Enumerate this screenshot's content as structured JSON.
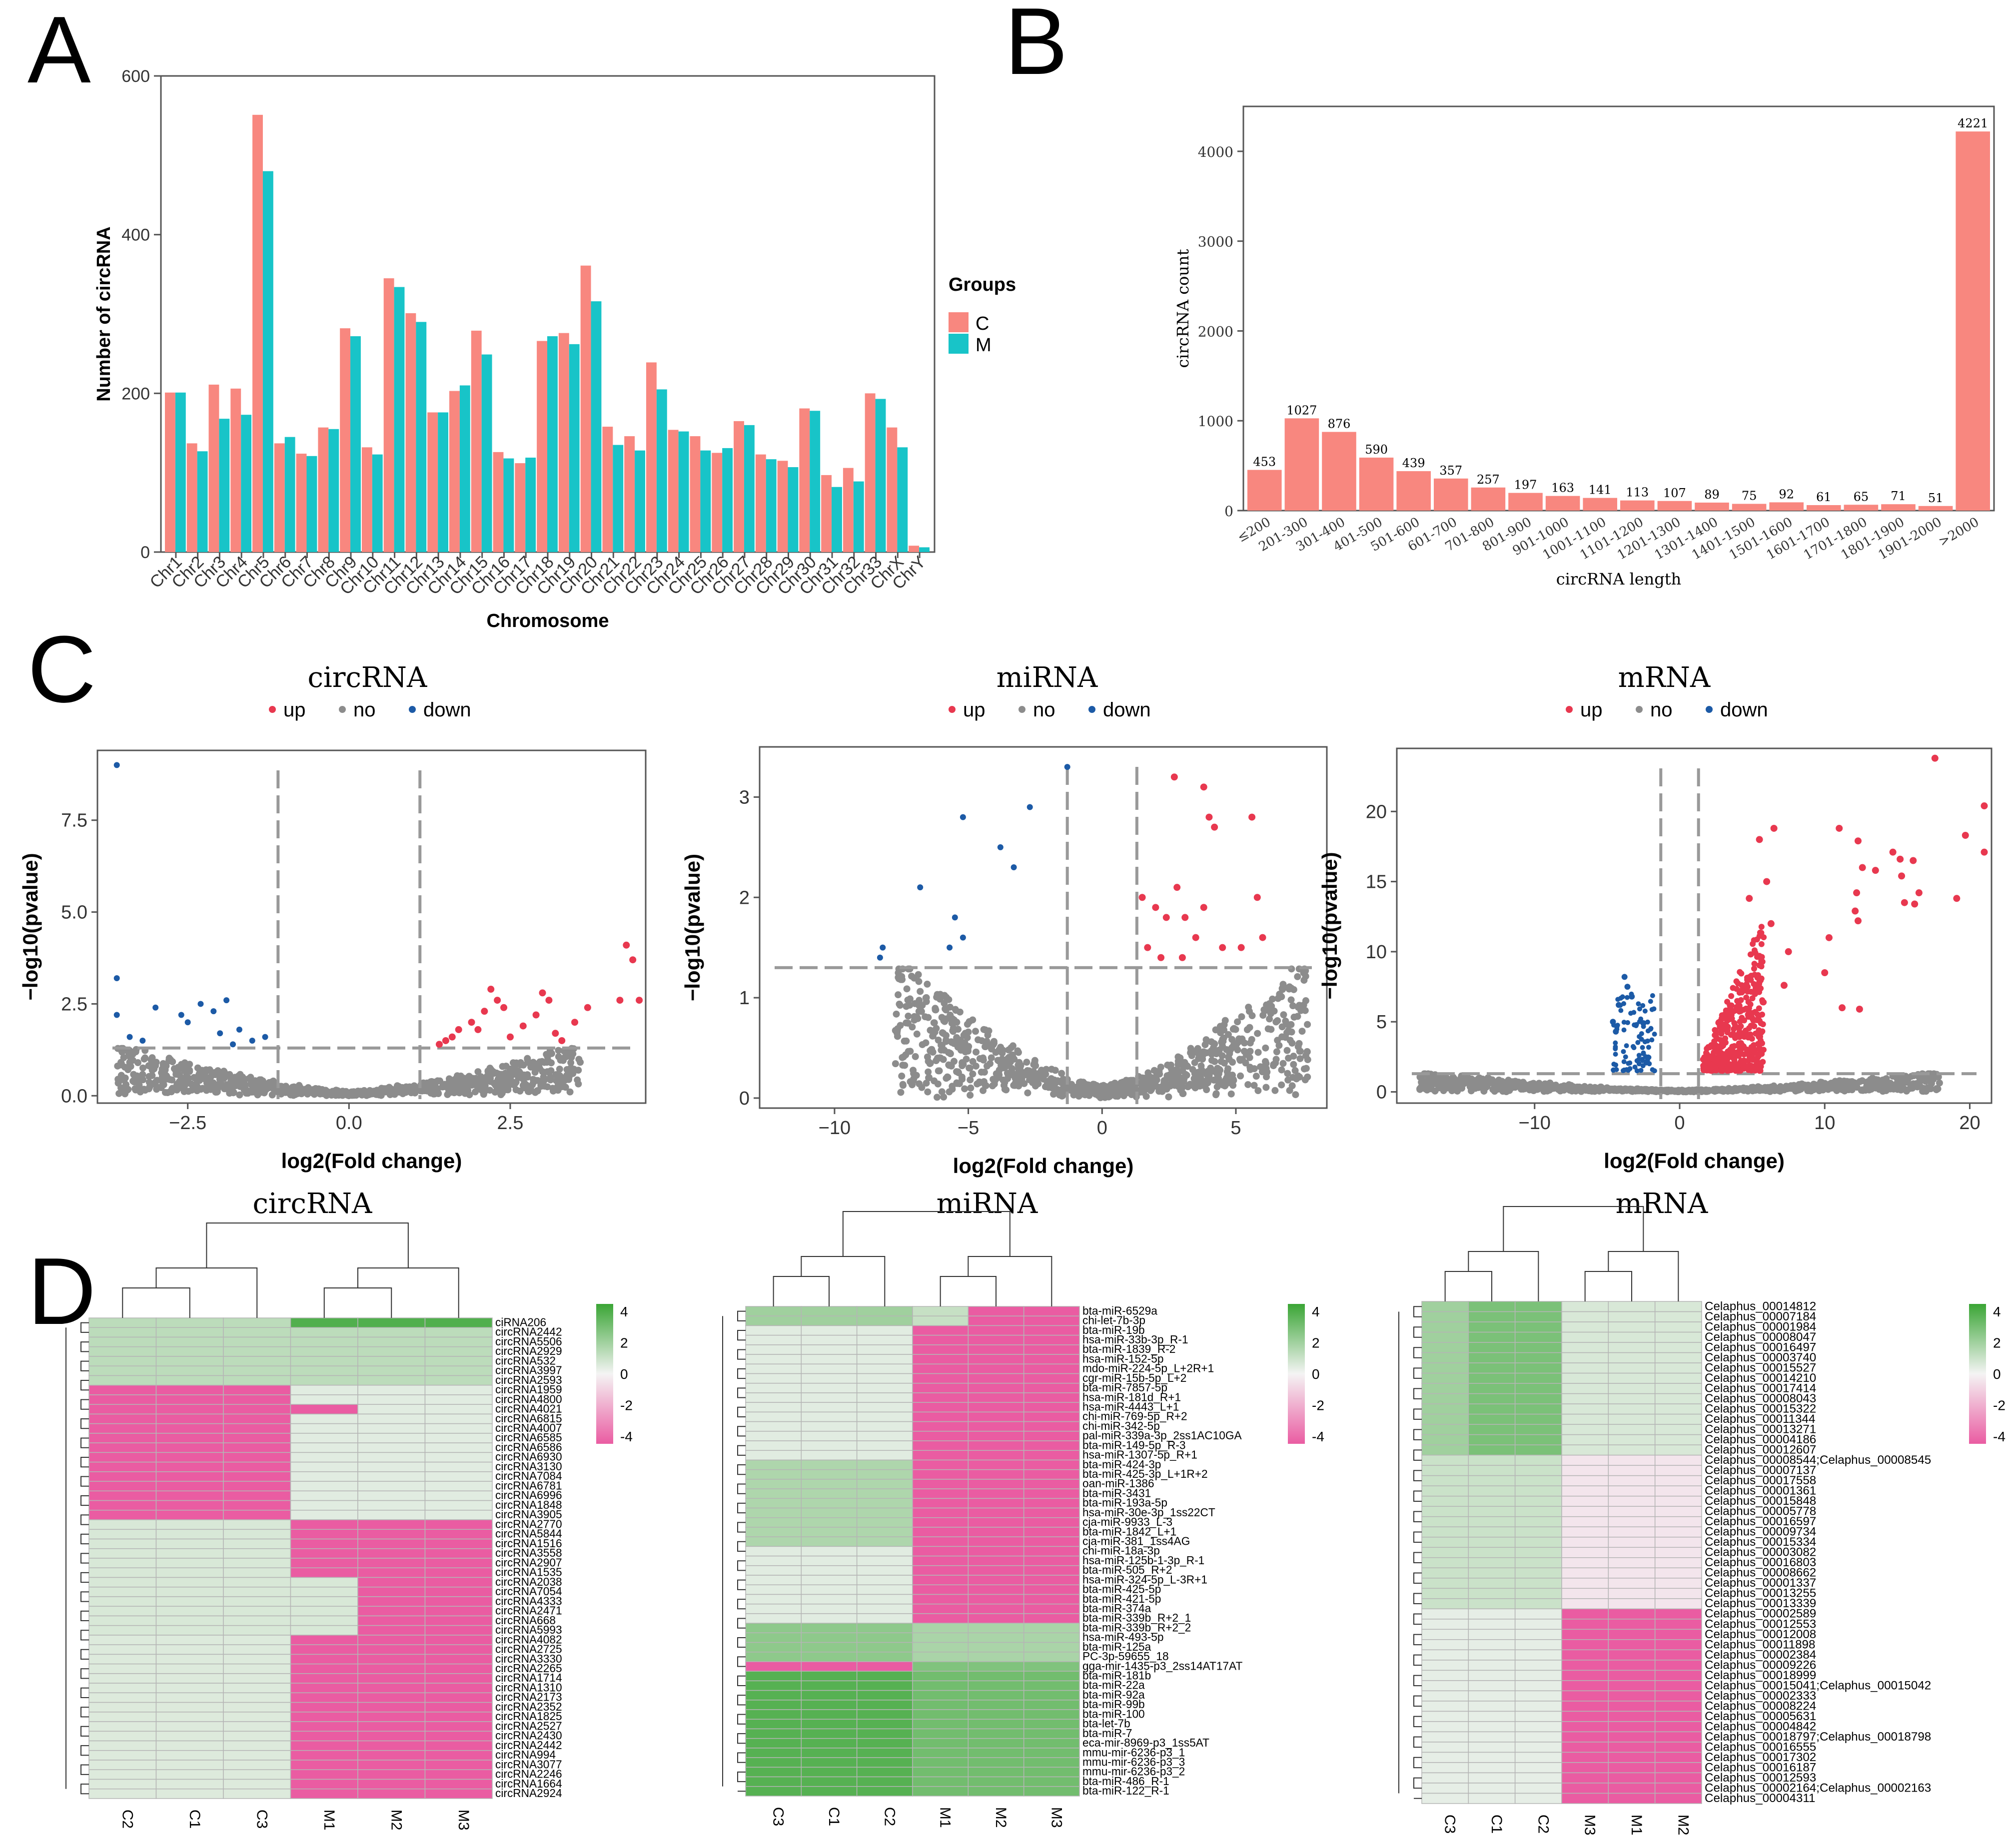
{
  "panel_labels": {
    "a": "A",
    "b": "B",
    "c": "C",
    "d": "D"
  },
  "colors": {
    "c_bar": "#f8877f",
    "m_bar": "#18c4c8",
    "b_bar": "#f8877f",
    "up": "#e8384f",
    "no": "#8c8c8c",
    "down": "#1c5aa6",
    "hm_high": "#3aa535",
    "hm_mid": "#f4f4f4",
    "hm_low": "#ea5ca2"
  },
  "chart_data": [
    {
      "id": "A",
      "type": "bar",
      "xlabel": "Chromosome",
      "ylabel": "Number of circRNA",
      "ylim": [
        0,
        600
      ],
      "yticks": [
        0,
        200,
        400,
        600
      ],
      "legend_title": "Groups",
      "categories": [
        "Chr1",
        "Chr2",
        "Chr3",
        "Chr4",
        "Chr5",
        "Chr6",
        "Chr7",
        "Chr8",
        "Chr9",
        "Chr10",
        "Chr11",
        "Chr12",
        "Chr13",
        "Chr14",
        "Chr15",
        "Chr16",
        "Chr17",
        "Chr18",
        "Chr19",
        "Chr20",
        "Chr21",
        "Chr22",
        "Chr23",
        "Chr24",
        "Chr25",
        "Chr26",
        "Chr27",
        "Chr28",
        "Chr29",
        "Chr30",
        "Chr31",
        "Chr32",
        "Chr33",
        "ChrX",
        "ChrY"
      ],
      "series": [
        {
          "name": "C",
          "values": [
            201,
            137,
            211,
            206,
            551,
            137,
            124,
            157,
            282,
            132,
            345,
            301,
            176,
            203,
            279,
            126,
            112,
            266,
            276,
            361,
            158,
            146,
            239,
            154,
            146,
            125,
            165,
            123,
            115,
            181,
            97,
            106,
            200,
            157,
            8
          ]
        },
        {
          "name": "M",
          "values": [
            201,
            127,
            168,
            173,
            480,
            145,
            121,
            155,
            272,
            123,
            334,
            290,
            176,
            210,
            249,
            118,
            119,
            272,
            262,
            316,
            135,
            128,
            205,
            152,
            128,
            131,
            160,
            117,
            107,
            178,
            82,
            89,
            193,
            132,
            6
          ]
        }
      ]
    },
    {
      "id": "B",
      "type": "bar",
      "xlabel": "circRNA length",
      "ylabel": "circRNA count",
      "ylim": [
        0,
        4500
      ],
      "yticks": [
        0,
        1000,
        2000,
        3000,
        4000
      ],
      "categories": [
        "≤200",
        "201-300",
        "301-400",
        "401-500",
        "501-600",
        "601-700",
        "701-800",
        "801-900",
        "901-1000",
        "1001-1100",
        "1101-1200",
        "1201-1300",
        "1301-1400",
        "1401-1500",
        "1501-1600",
        "1601-1700",
        "1701-1800",
        "1801-1900",
        "1901-2000",
        ">2000"
      ],
      "values": [
        453,
        1027,
        876,
        590,
        439,
        357,
        257,
        197,
        163,
        141,
        113,
        107,
        89,
        75,
        92,
        61,
        65,
        71,
        51,
        4221
      ]
    },
    {
      "id": "C-circRNA",
      "type": "scatter",
      "title": "circRNA",
      "xlabel": "log2(Fold change)",
      "ylabel": "−log10(pvalue)",
      "legend": [
        "up",
        "no",
        "down"
      ],
      "xlim": [
        -3.9,
        4.6
      ],
      "ylim": [
        -0.2,
        9.4
      ],
      "xticks": [
        -2.5,
        0.0,
        2.5
      ],
      "xtick_labels": [
        "−2.5",
        "0.0",
        "2.5"
      ],
      "yticks": [
        0.0,
        2.5,
        5.0,
        7.5
      ],
      "ytick_labels": [
        "0.0",
        "2.5",
        "5.0",
        "7.5"
      ],
      "vlines": [
        -1.1,
        1.1
      ],
      "hline": 1.3,
      "up_points": [
        [
          1.5,
          1.5
        ],
        [
          1.7,
          1.8
        ],
        [
          1.9,
          2.0
        ],
        [
          2.1,
          2.3
        ],
        [
          2.3,
          2.6
        ],
        [
          2.5,
          1.6
        ],
        [
          2.7,
          1.9
        ],
        [
          2.9,
          2.2
        ],
        [
          3.1,
          2.6
        ],
        [
          3.3,
          1.5
        ],
        [
          3.5,
          2.0
        ],
        [
          3.7,
          2.4
        ],
        [
          4.2,
          2.6
        ],
        [
          4.3,
          4.1
        ],
        [
          4.4,
          3.7
        ],
        [
          4.5,
          2.6
        ],
        [
          2.2,
          2.9
        ],
        [
          1.4,
          1.4
        ],
        [
          1.6,
          1.6
        ],
        [
          2.0,
          1.8
        ],
        [
          2.4,
          2.4
        ],
        [
          3.0,
          2.8
        ],
        [
          3.2,
          1.7
        ]
      ],
      "down_points": [
        [
          -3.6,
          9.0
        ],
        [
          -3.6,
          3.2
        ],
        [
          -3.6,
          2.2
        ],
        [
          -3.4,
          1.6
        ],
        [
          -3.0,
          2.4
        ],
        [
          -2.6,
          2.2
        ],
        [
          -2.3,
          2.5
        ],
        [
          -2.1,
          2.3
        ],
        [
          -1.9,
          2.6
        ],
        [
          -1.7,
          1.8
        ],
        [
          -1.5,
          1.5
        ],
        [
          -1.3,
          1.6
        ],
        [
          -2.5,
          2.0
        ],
        [
          -2.0,
          1.7
        ],
        [
          -1.8,
          1.4
        ],
        [
          -3.2,
          1.5
        ]
      ]
    },
    {
      "id": "C-miRNA",
      "type": "scatter",
      "title": "miRNA",
      "xlabel": "log2(Fold change)",
      "ylabel": "−log10(pvalue)",
      "legend": [
        "up",
        "no",
        "down"
      ],
      "xlim": [
        -12.8,
        8.4
      ],
      "ylim": [
        -0.1,
        3.5
      ],
      "xticks": [
        -10,
        -5,
        0,
        5
      ],
      "xtick_labels": [
        "−10",
        "−5",
        "0",
        "5"
      ],
      "yticks": [
        0,
        1,
        2,
        3
      ],
      "ytick_labels": [
        "0",
        "1",
        "2",
        "3"
      ],
      "vlines": [
        -1.3,
        1.3
      ],
      "hline": 1.3,
      "up_points": [
        [
          2.7,
          3.2
        ],
        [
          3.8,
          3.1
        ],
        [
          4.0,
          2.8
        ],
        [
          4.2,
          2.7
        ],
        [
          5.6,
          2.8
        ],
        [
          1.5,
          2.0
        ],
        [
          2.0,
          1.9
        ],
        [
          2.4,
          1.8
        ],
        [
          2.8,
          2.1
        ],
        [
          3.1,
          1.8
        ],
        [
          3.5,
          1.6
        ],
        [
          4.5,
          1.5
        ],
        [
          5.2,
          1.5
        ],
        [
          5.8,
          2.0
        ],
        [
          6.0,
          1.6
        ],
        [
          1.7,
          1.5
        ],
        [
          2.2,
          1.4
        ],
        [
          3.0,
          1.4
        ],
        [
          3.8,
          1.9
        ]
      ],
      "down_points": [
        [
          -1.3,
          3.3
        ],
        [
          -2.7,
          2.9
        ],
        [
          -5.2,
          2.8
        ],
        [
          -3.8,
          2.5
        ],
        [
          -3.3,
          2.3
        ],
        [
          -6.8,
          2.1
        ],
        [
          -5.5,
          1.8
        ],
        [
          -5.2,
          1.6
        ],
        [
          -5.7,
          1.5
        ],
        [
          -8.2,
          1.5
        ],
        [
          -8.3,
          1.4
        ]
      ]
    },
    {
      "id": "C-mRNA",
      "type": "scatter",
      "title": "mRNA",
      "xlabel": "log2(Fold change)",
      "ylabel": "−log10(pvalue)",
      "legend": [
        "up",
        "no",
        "down"
      ],
      "xlim": [
        -19.5,
        21.5
      ],
      "ylim": [
        -0.8,
        24.5
      ],
      "xticks": [
        -10,
        0,
        10,
        20
      ],
      "xtick_labels": [
        "−10",
        "0",
        "10",
        "20"
      ],
      "yticks": [
        0,
        5,
        10,
        15,
        20
      ],
      "ytick_labels": [
        "0",
        "5",
        "10",
        "15",
        "20"
      ],
      "vlines": [
        -1.3,
        1.3
      ],
      "hline": 1.3,
      "up_points": [
        [
          17.6,
          23.8
        ],
        [
          21.0,
          20.4
        ],
        [
          19.7,
          18.3
        ],
        [
          21.0,
          17.1
        ],
        [
          11.0,
          18.8
        ],
        [
          12.3,
          17.9
        ],
        [
          14.7,
          17.1
        ],
        [
          15.2,
          16.6
        ],
        [
          16.1,
          16.5
        ],
        [
          12.6,
          16.0
        ],
        [
          13.5,
          15.8
        ],
        [
          15.3,
          15.4
        ],
        [
          16.5,
          14.2
        ],
        [
          12.2,
          14.2
        ],
        [
          19.1,
          13.8
        ],
        [
          16.2,
          13.4
        ],
        [
          15.5,
          13.5
        ],
        [
          12.1,
          12.9
        ],
        [
          12.3,
          12.2
        ],
        [
          10.3,
          11.0
        ],
        [
          7.5,
          10.0
        ],
        [
          10.0,
          8.5
        ],
        [
          7.2,
          7.6
        ],
        [
          11.2,
          6.0
        ],
        [
          12.4,
          5.9
        ],
        [
          6.5,
          18.8
        ],
        [
          5.5,
          18.0
        ],
        [
          4.8,
          13.8
        ],
        [
          6.0,
          15.0
        ],
        [
          6.3,
          12.0
        ]
      ],
      "down_points": [
        [
          -3.8,
          8.2
        ],
        [
          -3.3,
          6.8
        ],
        [
          -4.6,
          5.0
        ],
        [
          -4.2,
          6.2
        ],
        [
          -2.5,
          4.9
        ],
        [
          -3.6,
          7.5
        ],
        [
          -4.4,
          4.3
        ]
      ]
    },
    {
      "id": "D-circRNA",
      "type": "heatmap",
      "title": "circRNA",
      "columns": [
        "C2",
        "C1",
        "C3",
        "M1",
        "M2",
        "M3"
      ],
      "scale_ticks": [
        4,
        2,
        0,
        -2,
        -4
      ],
      "row_labels": [
        "ciRNA206",
        "circRNA2442",
        "circRNA5506",
        "circRNA2929",
        "circRNA532",
        "circRNA3997",
        "circRNA2593",
        "circRNA1959",
        "circRNA4800",
        "circRNA4021",
        "circRNA6815",
        "circRNA4007",
        "circRNA6585",
        "circRNA6586",
        "circRNA6930",
        "circRNA3130",
        "circRNA7084",
        "circRNA6781",
        "circRNA6996",
        "circRNA1848",
        "circRNA3905",
        "circRNA2770",
        "circRNA5844",
        "circRNA1516",
        "circRNA3558",
        "circRNA2907",
        "circRNA1535",
        "circRNA2038",
        "circRNA7054",
        "circRNA4333",
        "circRNA2471",
        "circRNA668",
        "circRNA5993",
        "circRNA4082",
        "circRNA2725",
        "circRNA3330",
        "circRNA2265",
        "circRNA1714",
        "circRNA1310",
        "circRNA2173",
        "circRNA2352",
        "circRNA1825",
        "circRNA2527",
        "circRNA2430",
        "circRNA2442",
        "circRNA994",
        "circRNA3077",
        "circRNA2246",
        "circRNA1664",
        "circRNA2924"
      ]
    },
    {
      "id": "D-miRNA",
      "type": "heatmap",
      "title": "miRNA",
      "columns": [
        "C3",
        "C1",
        "C2",
        "M1",
        "M2",
        "M3"
      ],
      "scale_ticks": [
        4,
        2,
        0,
        -2,
        -4
      ],
      "row_labels": [
        "bta-miR-6529a",
        "chi-let-7b-3p",
        "bta-miR-19b",
        "hsa-miR-33b-3p_R-1",
        "bta-miR-1839_R-2",
        "hsa-miR-152-5p",
        "mdo-miR-224-5p_L+2R+1",
        "cgr-miR-15b-5p_L+2",
        "bta-miR-7857-5p",
        "hsa-miR-181d_R+1",
        "hsa-miR-4443_L+1",
        "chi-miR-769-5p_R+2",
        "chi-miR-342-5p",
        "pal-miR-339a-3p_2ss1AC10GA",
        "bta-miR-149-5p_R-3",
        "hsa-miR-1307-5p_R+1",
        "bta-miR-424-3p",
        "bta-miR-425-3p_L+1R+2",
        "oan-miR-1386",
        "bta-miR-3431",
        "bta-miR-193a-5p",
        "hsa-miR-30e-3p_1ss22CT",
        "cja-miR-9933_L-3",
        "bta-miR-1842_L+1",
        "cja-miR-381_1ss4AG",
        "chi-miR-18a-3p",
        "hsa-miR-125b-1-3p_R-1",
        "bta-miR-505_R+2",
        "hsa-miR-324-5p_L-3R+1",
        "bta-miR-425-5p",
        "bta-miR-421-5p",
        "bta-miR-374a",
        "bta-miR-339b_R+2_1",
        "bta-miR-339b_R+2_2",
        "hsa-miR-493-5p",
        "bta-miR-125a",
        "PC-3p-59655_18",
        "gga-mir-1435-p3_2ss14AT17AT",
        "bta-miR-181b",
        "bta-miR-22a",
        "bta-miR-92a",
        "bta-miR-99b",
        "bta-miR-100",
        "bta-let-7b",
        "bta-miR-7",
        "eca-mir-8969-p3_1ss5AT",
        "mmu-mir-6236-p3_1",
        "mmu-mir-6236-p3_3",
        "mmu-mir-6236-p3_2",
        "bta-miR-486_R-1",
        "bta-miR-122_R-1"
      ]
    },
    {
      "id": "D-mRNA",
      "type": "heatmap",
      "title": "mRNA",
      "columns": [
        "C3",
        "C1",
        "C2",
        "M3",
        "M1",
        "M2"
      ],
      "scale_ticks": [
        4,
        2,
        0,
        -2,
        -4
      ],
      "row_labels": [
        "Celaphus_00014812",
        "Celaphus_00007184",
        "Celaphus_00001984",
        "Celaphus_00008047",
        "Celaphus_00016497",
        "Celaphus_00003740",
        "Celaphus_00015527",
        "Celaphus_00014210",
        "Celaphus_00017414",
        "Celaphus_00008043",
        "Celaphus_00015322",
        "Celaphus_00011344",
        "Celaphus_00013271",
        "Celaphus_00004186",
        "Celaphus_00012607",
        "Celaphus_00008544;Celaphus_00008545",
        "Celaphus_00007137",
        "Celaphus_00017558",
        "Celaphus_00001361",
        "Celaphus_00015848",
        "Celaphus_00005778",
        "Celaphus_00016597",
        "Celaphus_00009734",
        "Celaphus_00015334",
        "Celaphus_00003082",
        "Celaphus_00016803",
        "Celaphus_00008662",
        "Celaphus_00001337",
        "Celaphus_00013255",
        "Celaphus_00013339",
        "Celaphus_00002589",
        "Celaphus_00012553",
        "Celaphus_00012008",
        "Celaphus_00011898",
        "Celaphus_00002384",
        "Celaphus_00009226",
        "Celaphus_00018999",
        "Celaphus_00015041;Celaphus_00015042",
        "Celaphus_00002333",
        "Celaphus_00008224",
        "Celaphus_00005631",
        "Celaphus_00004842",
        "Celaphus_00018797;Celaphus_00018798",
        "Celaphus_00016555",
        "Celaphus_00017302",
        "Celaphus_00016187",
        "Celaphus_00012593",
        "Celaphus_00002164;Celaphus_00002163",
        "Celaphus_00004311"
      ]
    }
  ]
}
